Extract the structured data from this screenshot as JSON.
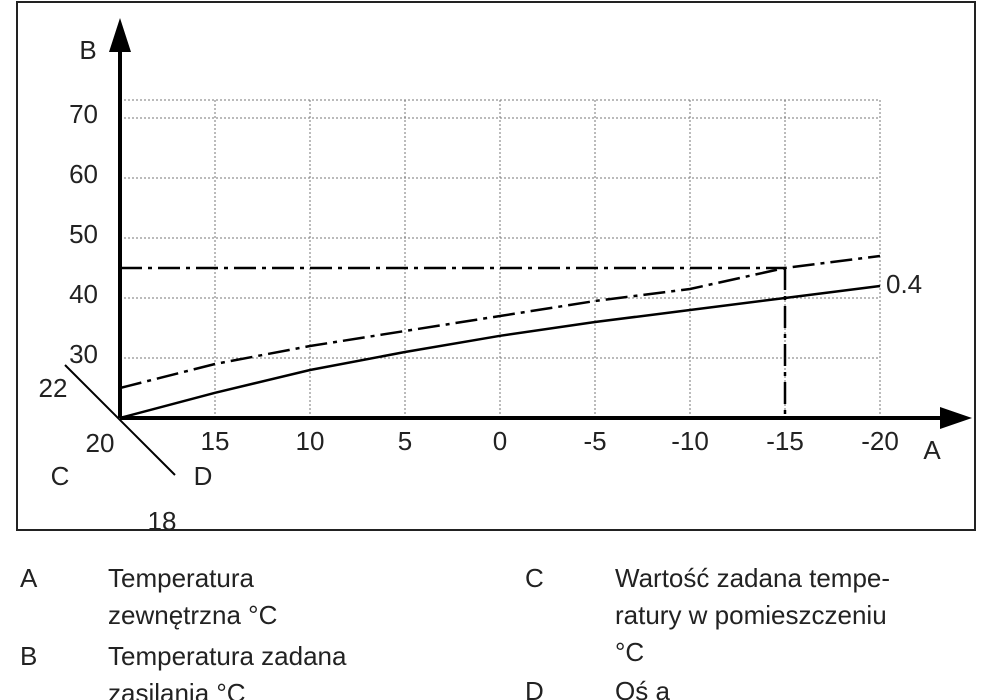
{
  "chart_data": {
    "type": "line",
    "xlabel": "A",
    "ylabel": "B",
    "x": [
      20,
      15,
      10,
      5,
      0,
      -5,
      -10,
      -15,
      -20
    ],
    "xlim": [
      20,
      -20
    ],
    "ylim": [
      20,
      73
    ],
    "xticks": [
      15,
      10,
      5,
      0,
      -5,
      -10,
      -15,
      -20
    ],
    "yticks": [
      30,
      40,
      50,
      60,
      70
    ],
    "grid": true,
    "series": [
      {
        "name": "0.4",
        "color": "#000000",
        "style": "solid",
        "values": [
          20,
          24.2,
          28,
          31,
          33.7,
          36,
          38,
          40,
          42
        ]
      },
      {
        "color": "#000000",
        "style": "dashdot",
        "values": [
          25,
          29,
          32,
          34.5,
          37,
          39.5,
          41.5,
          45,
          47
        ]
      }
    ],
    "reference": {
      "x": -15,
      "y": 45
    },
    "room_axis": {
      "start_label": "C",
      "end_label": "D",
      "ticks": [
        22,
        20,
        18
      ]
    },
    "legend_items": [
      {
        "key": "A",
        "lines": [
          "Temperatura",
          "zewnętrzna °C"
        ]
      },
      {
        "key": "B",
        "lines": [
          "Temperatura zadana",
          "zasilania °C"
        ]
      },
      {
        "key": "C",
        "lines": [
          "Wartość zadana tempe-",
          "ratury w pomieszczeniu",
          "°C"
        ]
      },
      {
        "key": "D",
        "lines": [
          "Oś a"
        ]
      }
    ]
  }
}
